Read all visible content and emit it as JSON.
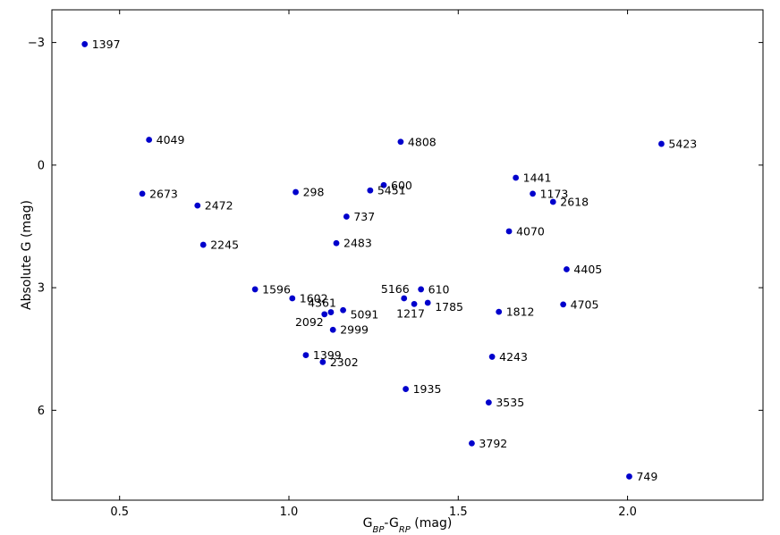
{
  "chart_data": {
    "type": "scatter",
    "xlabel": {
      "main": "G",
      "sub1": "BP",
      "sep": "-G",
      "sub2": "RP",
      "unit": " (mag)"
    },
    "ylabel": "Absolute G (mag)",
    "xlim": [
      0.3,
      2.4
    ],
    "ylim": [
      8.2,
      -3.8
    ],
    "y_inverted": true,
    "grid": false,
    "marker_color": "#0000cc",
    "x_ticks": [
      {
        "value": 0.5,
        "label": "0.5"
      },
      {
        "value": 1.0,
        "label": "1.0"
      },
      {
        "value": 1.5,
        "label": "1.5"
      },
      {
        "value": 2.0,
        "label": "2.0"
      }
    ],
    "y_ticks": [
      {
        "value": -3,
        "label": "−3"
      },
      {
        "value": 0,
        "label": "0"
      },
      {
        "value": 3,
        "label": "3"
      },
      {
        "value": 6,
        "label": "6"
      }
    ],
    "points": [
      {
        "label": "1397",
        "x": 0.397,
        "y": -2.96,
        "pos": "right"
      },
      {
        "label": "4049",
        "x": 0.587,
        "y": -0.62,
        "pos": "right"
      },
      {
        "label": "4808",
        "x": 1.33,
        "y": -0.57,
        "pos": "right"
      },
      {
        "label": "5423",
        "x": 2.1,
        "y": -0.52,
        "pos": "right"
      },
      {
        "label": "1441",
        "x": 1.67,
        "y": 0.31,
        "pos": "right"
      },
      {
        "label": "600",
        "x": 1.28,
        "y": 0.49,
        "pos": "right"
      },
      {
        "label": "5451",
        "x": 1.24,
        "y": 0.62,
        "pos": "right"
      },
      {
        "label": "298",
        "x": 1.02,
        "y": 0.66,
        "pos": "right"
      },
      {
        "label": "2673",
        "x": 0.567,
        "y": 0.7,
        "pos": "right"
      },
      {
        "label": "1173",
        "x": 1.72,
        "y": 0.7,
        "pos": "right"
      },
      {
        "label": "2618",
        "x": 1.78,
        "y": 0.9,
        "pos": "right"
      },
      {
        "label": "2472",
        "x": 0.73,
        "y": 0.99,
        "pos": "right"
      },
      {
        "label": "737",
        "x": 1.17,
        "y": 1.26,
        "pos": "right"
      },
      {
        "label": "4070",
        "x": 1.65,
        "y": 1.62,
        "pos": "right"
      },
      {
        "label": "2483",
        "x": 1.14,
        "y": 1.91,
        "pos": "right"
      },
      {
        "label": "2245",
        "x": 0.747,
        "y": 1.95,
        "pos": "right"
      },
      {
        "label": "4405",
        "x": 1.82,
        "y": 2.55,
        "pos": "right"
      },
      {
        "label": "1596",
        "x": 0.9,
        "y": 3.04,
        "pos": "right"
      },
      {
        "label": "5166",
        "x": 1.34,
        "y": 3.26,
        "pos": "above-left"
      },
      {
        "label": "610",
        "x": 1.39,
        "y": 3.04,
        "pos": "right"
      },
      {
        "label": "1602",
        "x": 1.01,
        "y": 3.26,
        "pos": "right"
      },
      {
        "label": "1217",
        "x": 1.37,
        "y": 3.4,
        "pos": "below"
      },
      {
        "label": "1785",
        "x": 1.41,
        "y": 3.37,
        "pos": "right-low"
      },
      {
        "label": "4705",
        "x": 1.81,
        "y": 3.41,
        "pos": "right"
      },
      {
        "label": "4361",
        "x": 1.124,
        "y": 3.6,
        "pos": "above-left"
      },
      {
        "label": "2092",
        "x": 1.105,
        "y": 3.65,
        "pos": "below-left"
      },
      {
        "label": "5091",
        "x": 1.16,
        "y": 3.55,
        "pos": "right-low"
      },
      {
        "label": "1812",
        "x": 1.62,
        "y": 3.59,
        "pos": "right"
      },
      {
        "label": "2999",
        "x": 1.13,
        "y": 4.03,
        "pos": "right"
      },
      {
        "label": "1399",
        "x": 1.05,
        "y": 4.65,
        "pos": "right"
      },
      {
        "label": "4243",
        "x": 1.6,
        "y": 4.69,
        "pos": "right"
      },
      {
        "label": "2302",
        "x": 1.1,
        "y": 4.82,
        "pos": "right"
      },
      {
        "label": "1935",
        "x": 1.345,
        "y": 5.48,
        "pos": "right"
      },
      {
        "label": "3535",
        "x": 1.59,
        "y": 5.81,
        "pos": "right"
      },
      {
        "label": "3792",
        "x": 1.54,
        "y": 6.81,
        "pos": "right"
      },
      {
        "label": "749",
        "x": 2.005,
        "y": 7.62,
        "pos": "right"
      }
    ]
  }
}
